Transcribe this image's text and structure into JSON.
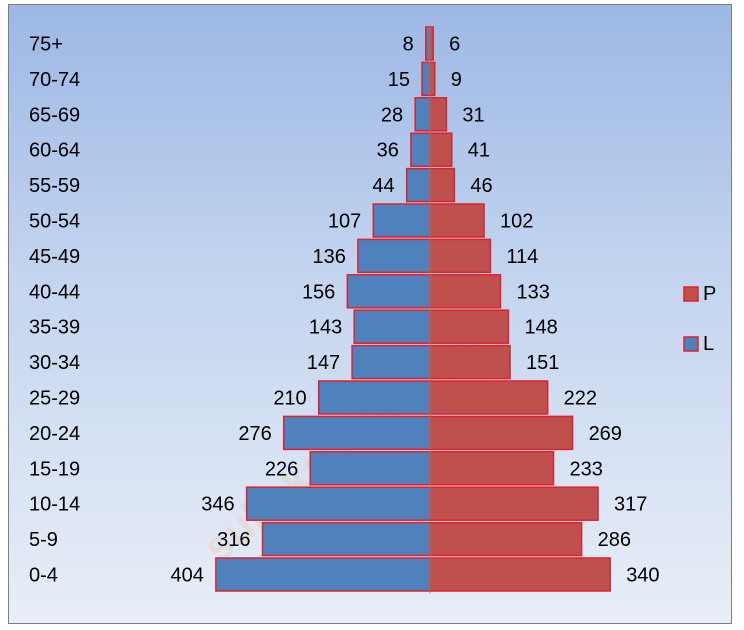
{
  "chart_data": {
    "type": "bar",
    "orientation": "horizontal",
    "subtype": "population-pyramid",
    "categories": [
      "0-4",
      "5-9",
      "10-14",
      "15-19",
      "20-24",
      "25-29",
      "30-34",
      "35-39",
      "40-44",
      "45-49",
      "50-54",
      "55-59",
      "60-64",
      "65-69",
      "70-74",
      "75+"
    ],
    "series": [
      {
        "name": "L",
        "side": "left",
        "color": "#4f81bd",
        "border": "#e0202a",
        "values": [
          404,
          316,
          346,
          226,
          276,
          210,
          147,
          143,
          156,
          136,
          107,
          44,
          36,
          28,
          15,
          8
        ]
      },
      {
        "name": "P",
        "side": "right",
        "color": "#c0504d",
        "border": "#e0202a",
        "values": [
          340,
          286,
          317,
          233,
          269,
          222,
          151,
          148,
          133,
          114,
          102,
          46,
          41,
          31,
          9,
          6
        ]
      }
    ],
    "legend": {
      "position": "right",
      "entries": [
        "P",
        "L"
      ]
    },
    "grid": false,
    "title": "",
    "xlabel": "",
    "ylabel": "",
    "xlim": [
      -404,
      404
    ],
    "watermark": "sukekab.bps.go.id"
  }
}
